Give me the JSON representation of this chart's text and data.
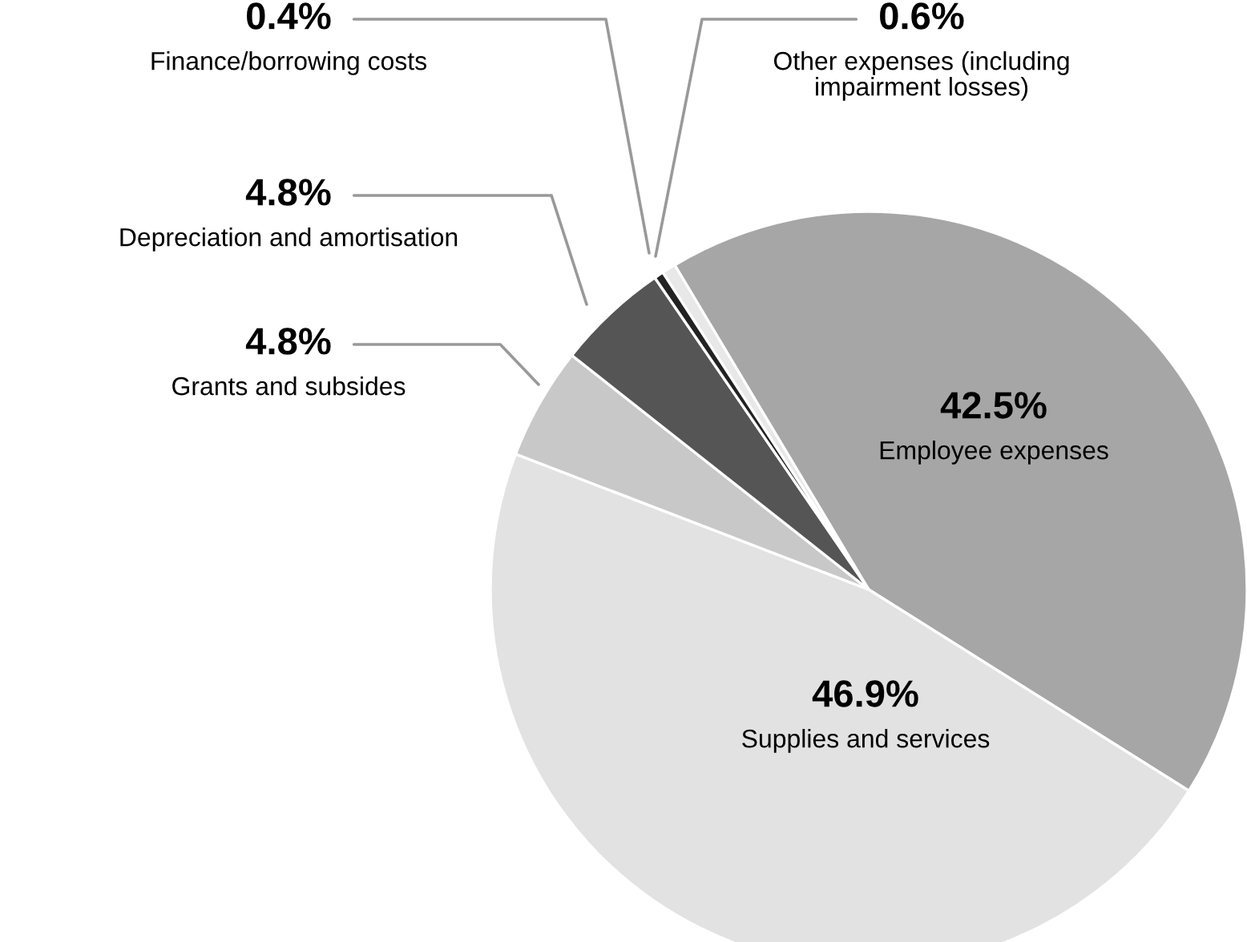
{
  "chart_data": {
    "type": "pie",
    "categories": [
      "Other expenses (including\nimpairment losses)",
      "Employee expenses",
      "Supplies and services",
      "Grants and subsides",
      "Depreciation and amortisation",
      "Finance/borrowing costs"
    ],
    "values": [
      0.6,
      42.5,
      46.9,
      4.8,
      4.8,
      0.4
    ],
    "colors": [
      "#e8e8e8",
      "#a6a6a6",
      "#e2e2e2",
      "#c8c8c8",
      "#555555",
      "#222222"
    ],
    "value_labels": [
      "0.6%",
      "42.5%",
      "46.9%",
      "4.8%",
      "4.8%",
      "0.4%"
    ],
    "legend": false
  }
}
